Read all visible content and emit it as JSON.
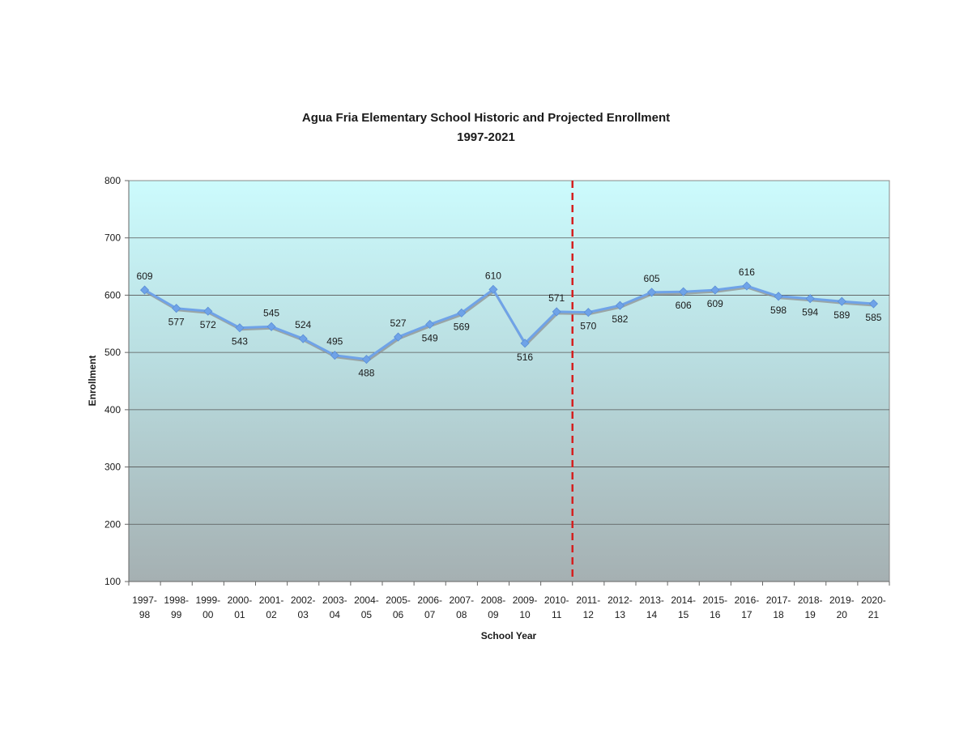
{
  "chart_data": {
    "type": "line",
    "title": "Agua Fria Elementary School Historic and Projected Enrollment",
    "subtitle": "1997-2021",
    "xlabel": "School Year",
    "ylabel": "Enrollment",
    "ylim": [
      100,
      800
    ],
    "yticks": [
      100,
      200,
      300,
      400,
      500,
      600,
      700,
      800
    ],
    "grid": true,
    "legend": "none",
    "categories": [
      [
        "1997-",
        "98"
      ],
      [
        "1998-",
        "99"
      ],
      [
        "1999-",
        "00"
      ],
      [
        "2000-",
        "01"
      ],
      [
        "2001-",
        "02"
      ],
      [
        "2002-",
        "03"
      ],
      [
        "2003-",
        "04"
      ],
      [
        "2004-",
        "05"
      ],
      [
        "2005-",
        "06"
      ],
      [
        "2006-",
        "07"
      ],
      [
        "2007-",
        "08"
      ],
      [
        "2008-",
        "09"
      ],
      [
        "2009-",
        "10"
      ],
      [
        "2010-",
        "11"
      ],
      [
        "2011-",
        "12"
      ],
      [
        "2012-",
        "13"
      ],
      [
        "2013-",
        "14"
      ],
      [
        "2014-",
        "15"
      ],
      [
        "2015-",
        "16"
      ],
      [
        "2016-",
        "17"
      ],
      [
        "2017-",
        "18"
      ],
      [
        "2018-",
        "19"
      ],
      [
        "2019-",
        "20"
      ],
      [
        "2020-",
        "21"
      ]
    ],
    "series": [
      {
        "values": [
          609,
          577,
          572,
          543,
          545,
          524,
          495,
          488,
          527,
          549,
          569,
          610,
          516,
          571,
          570,
          582,
          605,
          606,
          609,
          616,
          598,
          594,
          589,
          585
        ],
        "label_positions": [
          "above",
          "below",
          "below",
          "below",
          "above",
          "above",
          "above",
          "below",
          "above",
          "below",
          "below",
          "above",
          "below",
          "above",
          "below",
          "below",
          "above",
          "below",
          "below",
          "above",
          "below",
          "below",
          "below",
          "below"
        ]
      }
    ],
    "divider": {
      "between": [
        "2010-11",
        "2011-12"
      ],
      "style": "dashed",
      "color": "#d42020"
    },
    "colors": {
      "line": "#6fa3e8",
      "line_shadow": "#8a8a8a",
      "plot_bg_top": "#ccfbfd",
      "plot_bg_bottom": "#a5b0b2",
      "gridline": "#555555",
      "axis": "#666666"
    }
  }
}
